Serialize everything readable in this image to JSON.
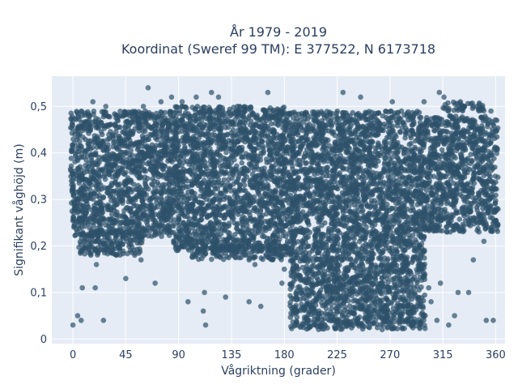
{
  "chart_data": {
    "type": "scatter",
    "title": [
      "År 1979 - 2019",
      "Koordinat (Sweref 99 TM): E 377522, N 6173718"
    ],
    "xlabel": "Vågriktning (grader)",
    "ylabel": "Signifikant våghöjd (m)",
    "xlim": [
      -18,
      368
    ],
    "ylim": [
      -0.01,
      0.565
    ],
    "x_ticks": [
      0,
      45,
      90,
      135,
      180,
      225,
      270,
      315,
      360
    ],
    "x_tick_labels": [
      "0",
      "45",
      "90",
      "135",
      "180",
      "225",
      "270",
      "315",
      "360"
    ],
    "y_ticks": [
      0,
      0.1,
      0.2,
      0.3,
      0.4,
      0.5
    ],
    "y_tick_labels": [
      "0",
      "0,1",
      "0,2",
      "0,3",
      "0,4",
      "0,5"
    ],
    "grid": true,
    "legend": "none",
    "colors": {
      "marker": "#2e5169",
      "plot_bg": "#e5ecf6",
      "grid": "#ffffff"
    },
    "dense_regions": [
      {
        "x": [
          -2,
          85
        ],
        "y": [
          0.22,
          0.49
        ]
      },
      {
        "x": [
          5,
          60
        ],
        "y": [
          0.18,
          0.23
        ]
      },
      {
        "x": [
          85,
          185
        ],
        "y": [
          0.19,
          0.5
        ]
      },
      {
        "x": [
          100,
          185
        ],
        "y": [
          0.17,
          0.2
        ]
      },
      {
        "x": [
          185,
          298
        ],
        "y": [
          0.27,
          0.49
        ]
      },
      {
        "x": [
          185,
          300
        ],
        "y": [
          0.02,
          0.27
        ]
      },
      {
        "x": [
          298,
          362
        ],
        "y": [
          0.23,
          0.48
        ]
      },
      {
        "x": [
          315,
          350
        ],
        "y": [
          0.49,
          0.51
        ]
      }
    ],
    "series": [
      {
        "x": [
          0,
          4,
          7,
          19,
          26,
          45,
          70,
          98,
          111,
          113,
          150,
          112,
          130,
          160,
          202,
          226,
          252,
          264,
          283,
          300,
          310,
          320,
          325,
          352,
          358,
          200,
          178,
          218,
          240,
          255,
          288,
          337,
          20,
          37,
          58,
          17,
          28,
          64,
          84,
          93,
          106,
          118,
          124,
          142,
          166,
          230,
          245,
          272,
          299,
          312,
          316,
          330,
          344,
          356,
          60,
          75,
          140,
          105,
          93,
          8,
          22,
          150,
          155,
          180,
          190,
          209,
          237,
          248,
          260,
          271,
          278,
          285,
          291,
          305,
          313,
          303,
          328,
          341,
          350
        ],
        "y": [
          0.03,
          0.05,
          0.04,
          0.11,
          0.04,
          0.13,
          0.12,
          0.08,
          0.06,
          0.03,
          0.08,
          0.1,
          0.09,
          0.07,
          0.06,
          0.03,
          0.05,
          0.03,
          0.04,
          0.05,
          0.04,
          0.03,
          0.05,
          0.04,
          0.04,
          0.14,
          0.12,
          0.16,
          0.13,
          0.12,
          0.14,
          0.1,
          0.16,
          0.18,
          0.17,
          0.51,
          0.5,
          0.54,
          0.52,
          0.51,
          0.5,
          0.53,
          0.52,
          0.5,
          0.53,
          0.53,
          0.52,
          0.51,
          0.51,
          0.53,
          0.52,
          0.51,
          0.5,
          0.49,
          0.5,
          0.51,
          0.5,
          0.52,
          0.5,
          0.11,
          0.21,
          0.17,
          0.16,
          0.15,
          0.13,
          0.12,
          0.16,
          0.15,
          0.14,
          0.11,
          0.09,
          0.12,
          0.1,
          0.08,
          0.12,
          0.11,
          0.1,
          0.17,
          0.21
        ]
      }
    ]
  }
}
